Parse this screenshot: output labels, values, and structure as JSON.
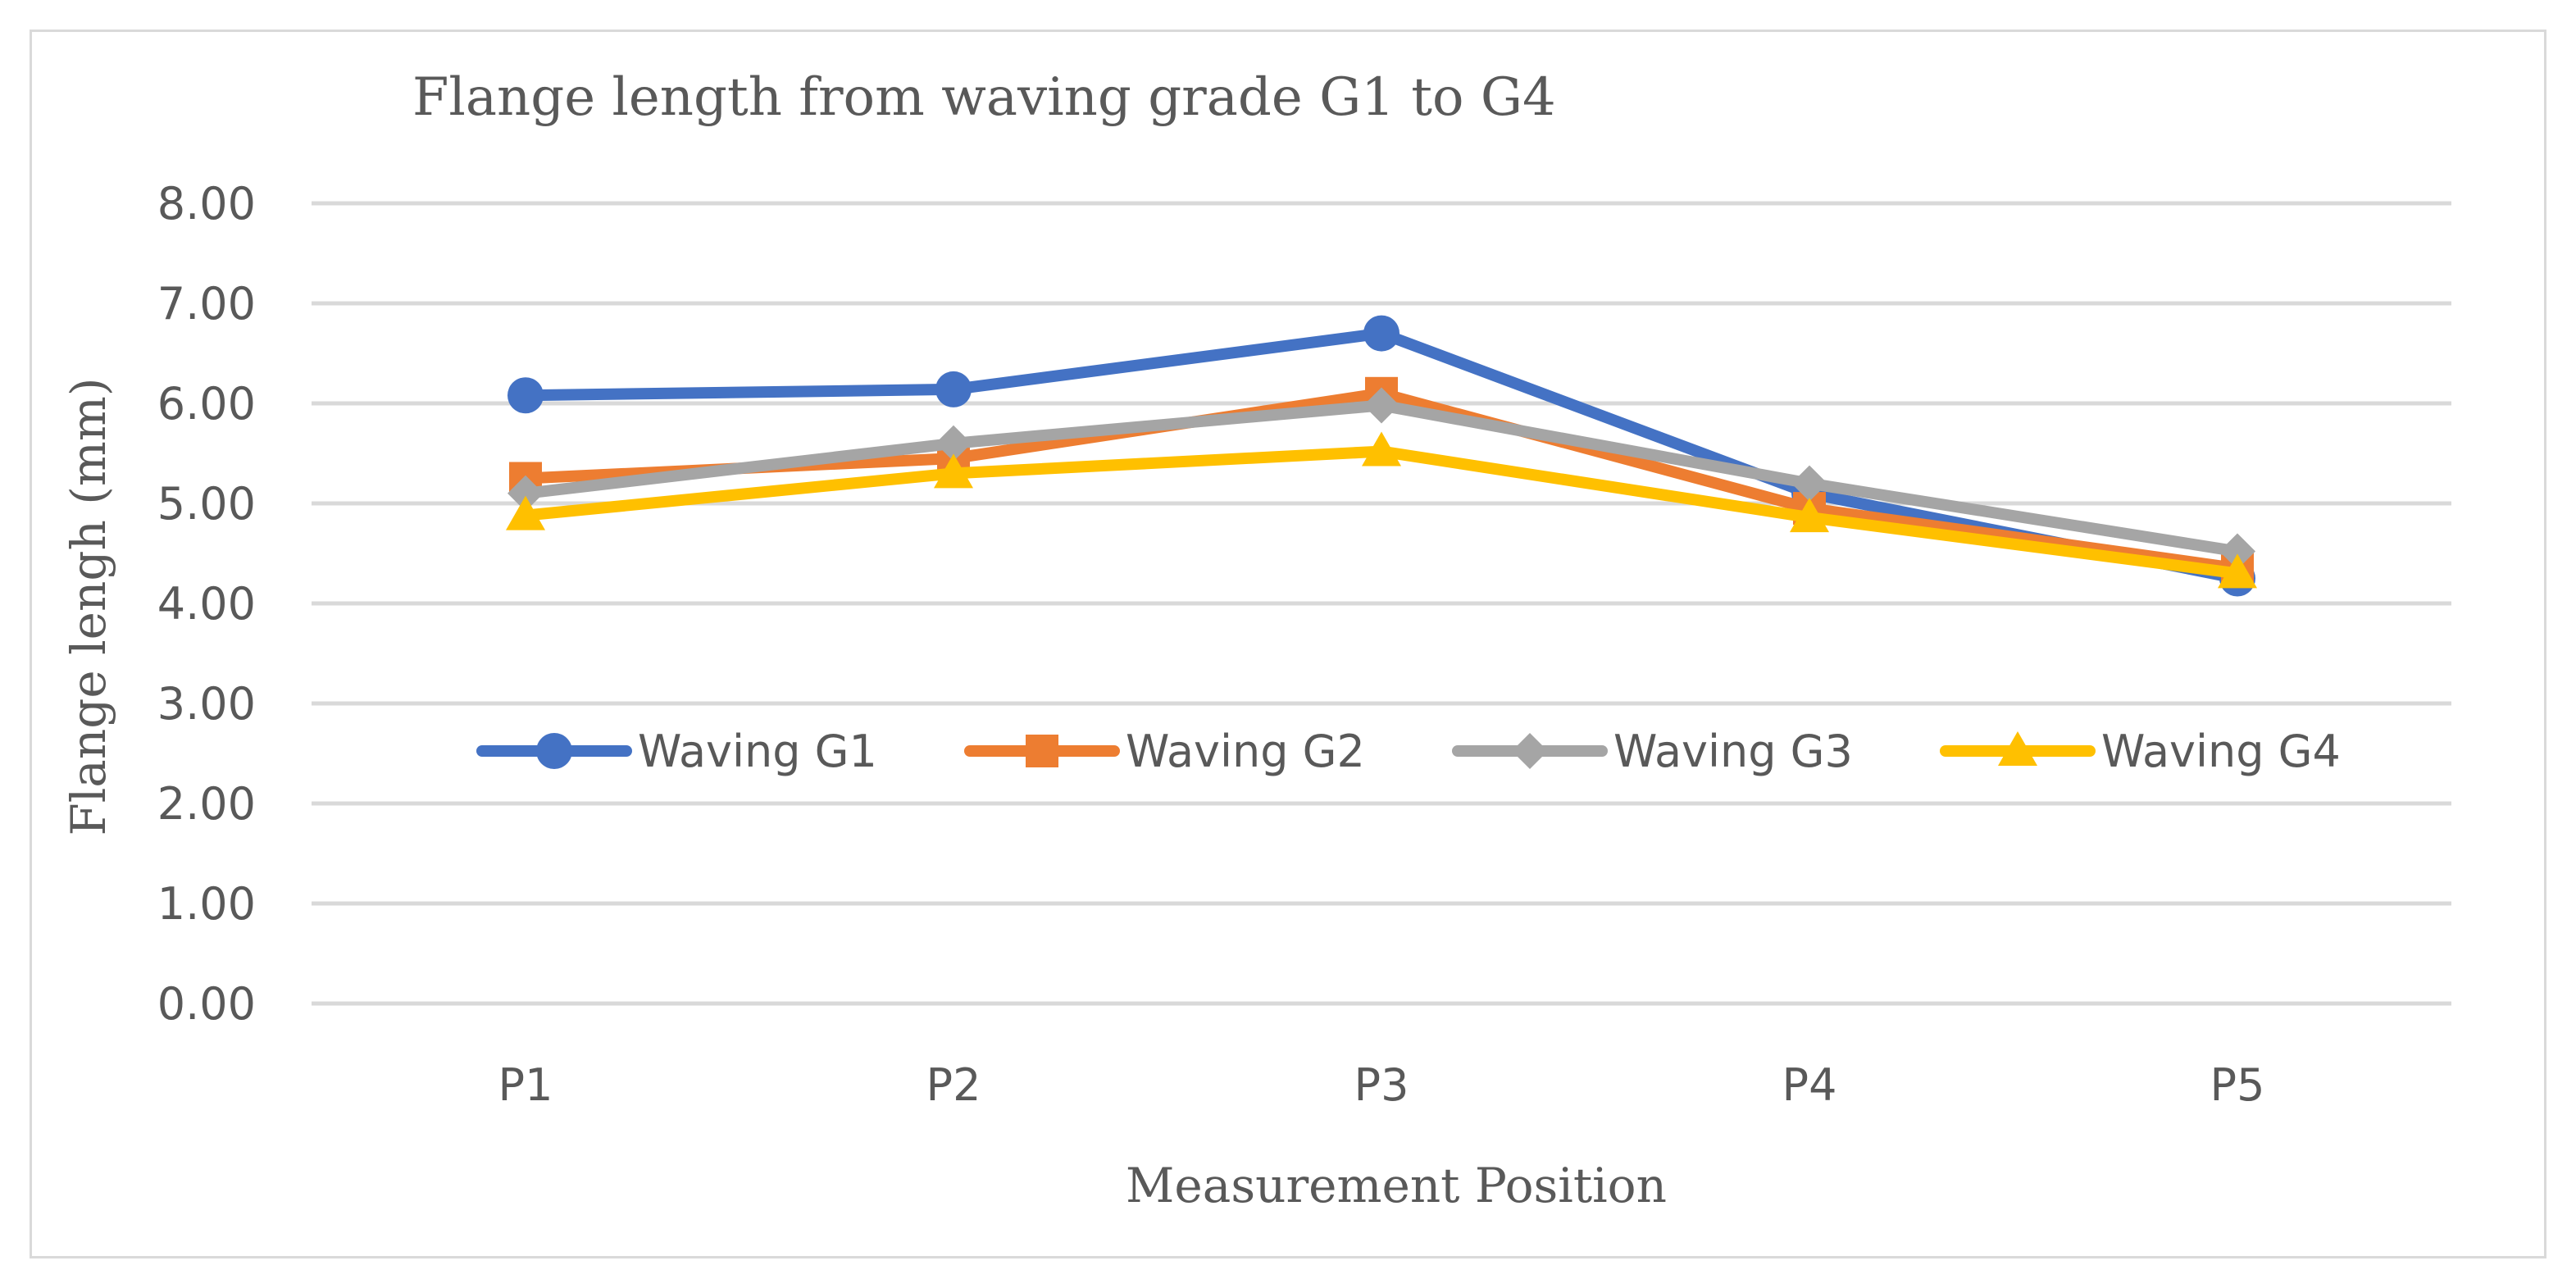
{
  "chart_data": {
    "type": "line",
    "title": "Flange length from waving grade G1 to G4",
    "xlabel": "Measurement Position",
    "ylabel": "Flange lengh (mm)",
    "categories": [
      "P1",
      "P2",
      "P3",
      "P4",
      "P5"
    ],
    "ylim": [
      0,
      8
    ],
    "yticks": [
      "0.00",
      "1.00",
      "2.00",
      "3.00",
      "4.00",
      "5.00",
      "6.00",
      "7.00",
      "8.00"
    ],
    "grid": true,
    "legend_position": "center, inside plot area",
    "series": [
      {
        "name": "Waving G1",
        "values": [
          6.08,
          6.14,
          6.7,
          5.1,
          4.25
        ],
        "color": "#4472c4",
        "marker": "circle"
      },
      {
        "name": "Waving G2",
        "values": [
          5.25,
          5.45,
          6.1,
          4.95,
          4.35
        ],
        "color": "#ed7d31",
        "marker": "square"
      },
      {
        "name": "Waving G3",
        "values": [
          5.1,
          5.6,
          5.98,
          5.2,
          4.52
        ],
        "color": "#a5a5a5",
        "marker": "diamond"
      },
      {
        "name": "Waving G4",
        "values": [
          4.88,
          5.3,
          5.52,
          4.86,
          4.3
        ],
        "color": "#ffc000",
        "marker": "triangle"
      }
    ]
  }
}
